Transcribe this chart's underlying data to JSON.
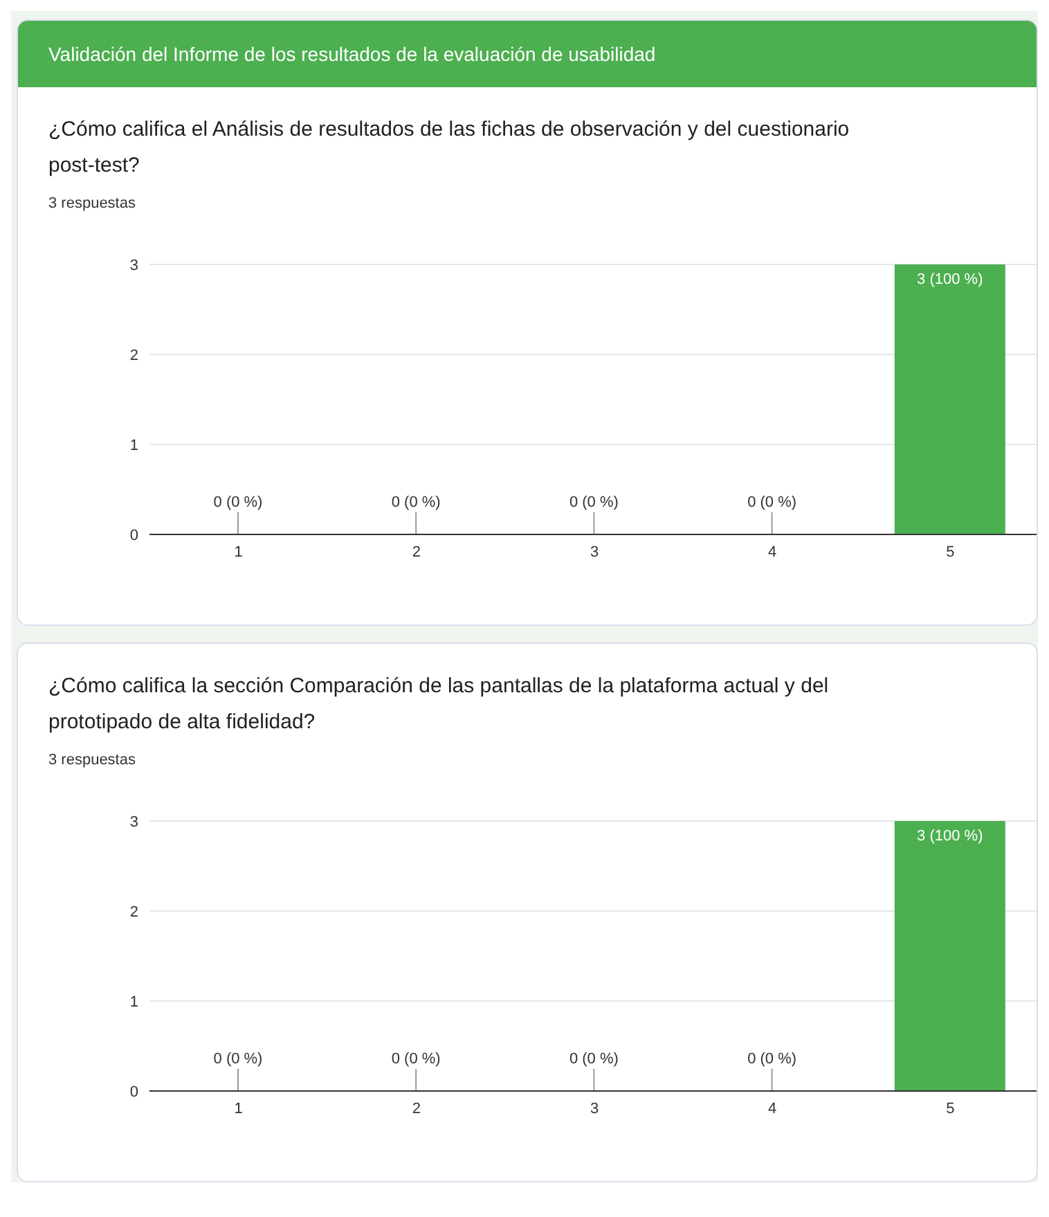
{
  "chart_data": [
    {
      "type": "bar",
      "annotations": [
        "Validación del Informe de los resultados de la evaluación de usabilidad"
      ],
      "title": "¿Cómo califica el Análisis de resultados de las fichas de observación y del cuestionario post-test?",
      "subtitle": "3 respuestas",
      "categories": [
        "1",
        "2",
        "3",
        "4",
        "5"
      ],
      "values": [
        0,
        0,
        0,
        0,
        3
      ],
      "value_labels": [
        "0 (0 %)",
        "0 (0 %)",
        "0 (0 %)",
        "0 (0 %)",
        "3 (100 %)"
      ],
      "color": "#4caf50",
      "ylim": [
        0,
        3
      ],
      "yticks": [
        0,
        1,
        2,
        3
      ],
      "grid": "y"
    },
    {
      "type": "bar",
      "title": "¿Cómo califica la sección Comparación de las pantallas de la plataforma actual y del prototipado de alta fidelidad?",
      "subtitle": "3 respuestas",
      "categories": [
        "1",
        "2",
        "3",
        "4",
        "5"
      ],
      "values": [
        0,
        0,
        0,
        0,
        3
      ],
      "value_labels": [
        "0 (0 %)",
        "0 (0 %)",
        "0 (0 %)",
        "0 (0 %)",
        "3 (100 %)"
      ],
      "color": "#4caf50",
      "ylim": [
        0,
        3
      ],
      "yticks": [
        0,
        1,
        2,
        3
      ],
      "grid": "y"
    }
  ]
}
